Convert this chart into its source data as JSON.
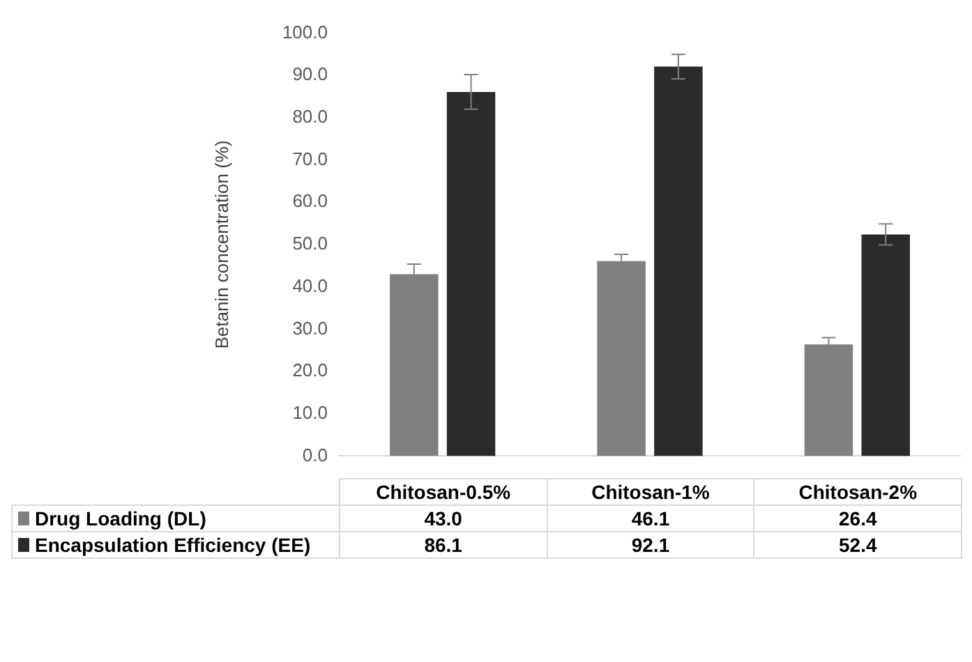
{
  "chart_data": {
    "type": "bar",
    "ylabel": "Betanin concentration (%)",
    "categories": [
      "Chitosan-0.5%",
      "Chitosan-1%",
      "Chitosan-2%"
    ],
    "series": [
      {
        "name": "Drug Loading (DL)",
        "color": "#808080",
        "values": [
          43.0,
          46.1,
          26.4
        ],
        "value_labels": [
          "43.0",
          "46.1",
          "26.4"
        ],
        "errors": [
          2.4,
          1.6,
          1.6
        ]
      },
      {
        "name": "Encapsulation Efficiency (EE)",
        "color": "#2b2b2b",
        "values": [
          86.1,
          92.1,
          52.4
        ],
        "value_labels": [
          "86.1",
          "92.1",
          "52.4"
        ],
        "errors": [
          4.1,
          2.9,
          2.5
        ]
      }
    ],
    "ylim": [
      0,
      100
    ],
    "yticks": [
      {
        "value": 0,
        "label": "0.0"
      },
      {
        "value": 10,
        "label": "10.0"
      },
      {
        "value": 20,
        "label": "20.0"
      },
      {
        "value": 30,
        "label": "30.0"
      },
      {
        "value": 40,
        "label": "40.0"
      },
      {
        "value": 50,
        "label": "50.0"
      },
      {
        "value": 60,
        "label": "60.0"
      },
      {
        "value": 70,
        "label": "70.0"
      },
      {
        "value": 80,
        "label": "80.0"
      },
      {
        "value": 90,
        "label": "90.0"
      },
      {
        "value": 100,
        "label": "100.0"
      }
    ],
    "legend": "bottom left",
    "grid": false
  }
}
